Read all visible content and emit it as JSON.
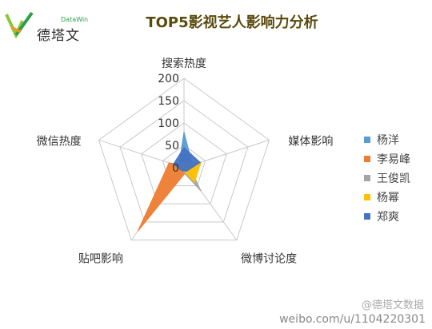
{
  "brand": {
    "name_cn": "德塔文",
    "name_en": "DataWin"
  },
  "footer": {
    "text": "weibo.com/u/1104220301",
    "watermark": "@德塔文数据"
  },
  "colors": {
    "title": "#5a4a0e",
    "grid": "#c8c8c8",
    "axis_label": "#333333"
  },
  "chart_data": {
    "type": "radar",
    "title": "TOP5影视艺人影响力分析",
    "axes": [
      "搜索热度",
      "媒体影响",
      "微博讨论度",
      "贴吧影响",
      "微信热度"
    ],
    "ticks": [
      0,
      50,
      100,
      150,
      200
    ],
    "range": [
      0,
      200
    ],
    "legend_position": "right",
    "series": [
      {
        "name": "杨洋",
        "color": "#5b9bd5",
        "values": [
          80,
          20,
          15,
          5,
          12
        ]
      },
      {
        "name": "李易峰",
        "color": "#ed7d31",
        "values": [
          5,
          5,
          10,
          175,
          35
        ]
      },
      {
        "name": "王俊凯",
        "color": "#a5a5a5",
        "values": [
          10,
          12,
          65,
          8,
          10
        ]
      },
      {
        "name": "杨幂",
        "color": "#ffc000",
        "values": [
          12,
          40,
          40,
          5,
          10
        ]
      },
      {
        "name": "郑爽",
        "color": "#4472c4",
        "values": [
          45,
          38,
          10,
          8,
          25
        ]
      }
    ]
  }
}
